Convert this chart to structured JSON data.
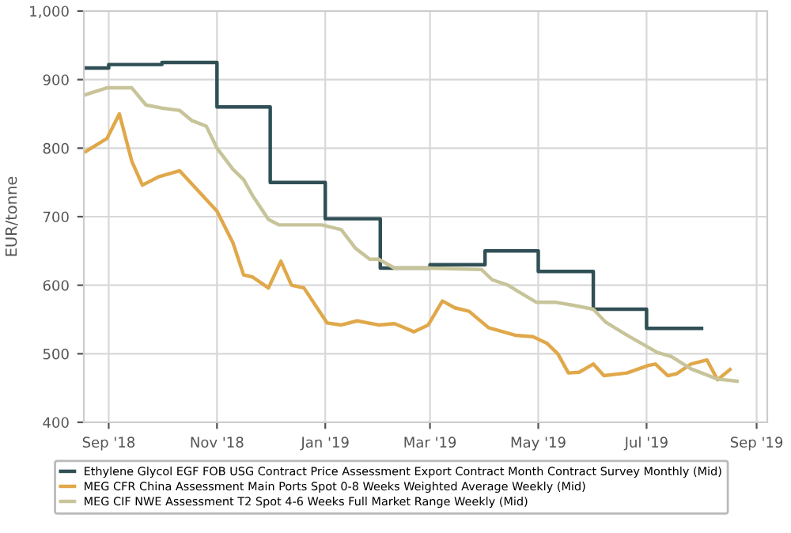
{
  "chart_data": {
    "type": "line",
    "ylabel": "EUR/tonne",
    "xlim": [
      "2018-08-18",
      "2019-09-07"
    ],
    "xticks": [
      {
        "value": "2018-09-01",
        "label": "Sep '18"
      },
      {
        "value": "2018-11-01",
        "label": "Nov '18"
      },
      {
        "value": "2019-01-01",
        "label": "Jan '19"
      },
      {
        "value": "2019-03-01",
        "label": "Mar '19"
      },
      {
        "value": "2019-05-01",
        "label": "May '19"
      },
      {
        "value": "2019-07-01",
        "label": "Jul '19"
      },
      {
        "value": "2019-09-01",
        "label": "Sep '19"
      }
    ],
    "ylim": [
      400,
      1000
    ],
    "yticks": [
      400,
      500,
      600,
      700,
      800,
      900,
      {
        "value": 1000,
        "label": "1,000"
      }
    ],
    "grid": true,
    "legend": "bottom",
    "marker": "none",
    "line_style": "solid",
    "series": [
      {
        "name": "Ethylene Glycol EGF FOB USG Contract Price Assessment Export Contract Month Contract Survey Monthly (Mid)",
        "type": "step",
        "color": "#2f4f55",
        "x": [
          "2018-08-18",
          "2018-09-01",
          "2018-10-01",
          "2018-11-01",
          "2018-12-01",
          "2019-01-01",
          "2019-02-01",
          "2019-03-01",
          "2019-04-01",
          "2019-05-01",
          "2019-06-01",
          "2019-07-01",
          "2019-08-01"
        ],
        "values": [
          917,
          922,
          925,
          860,
          750,
          697,
          625,
          630,
          650,
          620,
          565,
          537,
          537
        ]
      },
      {
        "name": "MEG CFR China Assessment Main Ports Spot 0-8 Weeks Weighted Average Weekly (Mid)",
        "color": "#e0a84a",
        "x": [
          "2018-08-19",
          "2018-08-31",
          "2018-09-07",
          "2018-09-14",
          "2018-09-20",
          "2018-09-29",
          "2018-10-11",
          "2018-11-01",
          "2018-11-10",
          "2018-11-16",
          "2018-11-21",
          "2018-11-30",
          "2018-12-07",
          "2018-12-13",
          "2018-12-20",
          "2019-01-02",
          "2019-01-10",
          "2019-01-19",
          "2019-01-31",
          "2019-02-09",
          "2019-02-20",
          "2019-02-28",
          "2019-03-08",
          "2019-03-15",
          "2019-03-23",
          "2019-04-03",
          "2019-04-18",
          "2019-04-28",
          "2019-05-06",
          "2019-05-12",
          "2019-05-18",
          "2019-05-24",
          "2019-06-01",
          "2019-06-07",
          "2019-06-20",
          "2019-07-02",
          "2019-07-06",
          "2019-07-13",
          "2019-07-18",
          "2019-07-26",
          "2019-08-04",
          "2019-08-10",
          "2019-08-17"
        ],
        "values": [
          795,
          814,
          850,
          781,
          746,
          758,
          767,
          708,
          662,
          615,
          612,
          596,
          635,
          600,
          596,
          545,
          542,
          548,
          542,
          544,
          532,
          542,
          577,
          567,
          562,
          538,
          527,
          525,
          515,
          500,
          472,
          473,
          485,
          468,
          472,
          483,
          485,
          468,
          471,
          485,
          491,
          462,
          477
        ]
      },
      {
        "name": "MEG CIF NWE Assessment T2 Spot 4-6 Weeks Full Market Range Weekly (Mid)",
        "color": "#c8c49a",
        "x": [
          "2018-08-19",
          "2018-08-31",
          "2018-09-14",
          "2018-09-22",
          "2018-10-02",
          "2018-10-11",
          "2018-10-18",
          "2018-10-26",
          "2018-11-01",
          "2018-11-10",
          "2018-11-16",
          "2018-11-21",
          "2018-11-30",
          "2018-12-06",
          "2018-12-30",
          "2019-01-10",
          "2019-01-18",
          "2019-01-26",
          "2019-01-31",
          "2019-02-09",
          "2019-02-28",
          "2019-03-30",
          "2019-04-05",
          "2019-04-14",
          "2019-04-19",
          "2019-04-30",
          "2019-05-11",
          "2019-05-20",
          "2019-06-01",
          "2019-06-08",
          "2019-06-20",
          "2019-07-07",
          "2019-07-15",
          "2019-07-26",
          "2019-08-10",
          "2019-08-21"
        ],
        "values": [
          878,
          888,
          888,
          863,
          858,
          855,
          840,
          832,
          800,
          769,
          754,
          731,
          696,
          688,
          688,
          681,
          654,
          638,
          638,
          625,
          625,
          623,
          608,
          600,
          592,
          575,
          575,
          571,
          565,
          546,
          527,
          502,
          496,
          478,
          463,
          460
        ]
      }
    ]
  }
}
